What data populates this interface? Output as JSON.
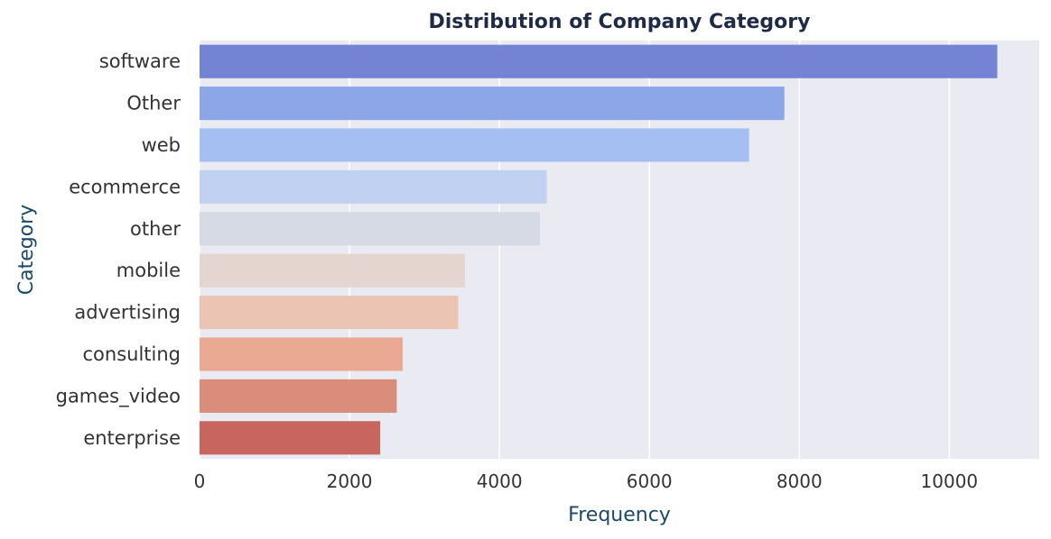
{
  "chart_data": {
    "type": "bar",
    "orientation": "horizontal",
    "title": "Distribution of Company Category",
    "xlabel": "Frequency",
    "ylabel": "Category",
    "categories": [
      "software",
      "Other",
      "web",
      "ecommerce",
      "other",
      "mobile",
      "advertising",
      "consulting",
      "games_video",
      "enterprise"
    ],
    "values": [
      10640,
      7800,
      7330,
      4630,
      4540,
      3540,
      3450,
      2710,
      2630,
      2410
    ],
    "xlim": [
      0,
      11200
    ],
    "xticks": [
      0,
      2000,
      4000,
      6000,
      8000,
      10000
    ],
    "xtick_labels": [
      "0",
      "2000",
      "4000",
      "6000",
      "8000",
      "10000"
    ],
    "grid": true,
    "colors": [
      "#7483d4",
      "#8da6e8",
      "#a6bff2",
      "#c0d1f2",
      "#d5dae5",
      "#e4d5d0",
      "#ecc4b3",
      "#e9a993",
      "#d98d7a",
      "#c9655f"
    ],
    "background": "#eaeaf2",
    "title_color": "#1f2a44",
    "label_color": "#1d4a66",
    "tick_color": "#333333"
  }
}
